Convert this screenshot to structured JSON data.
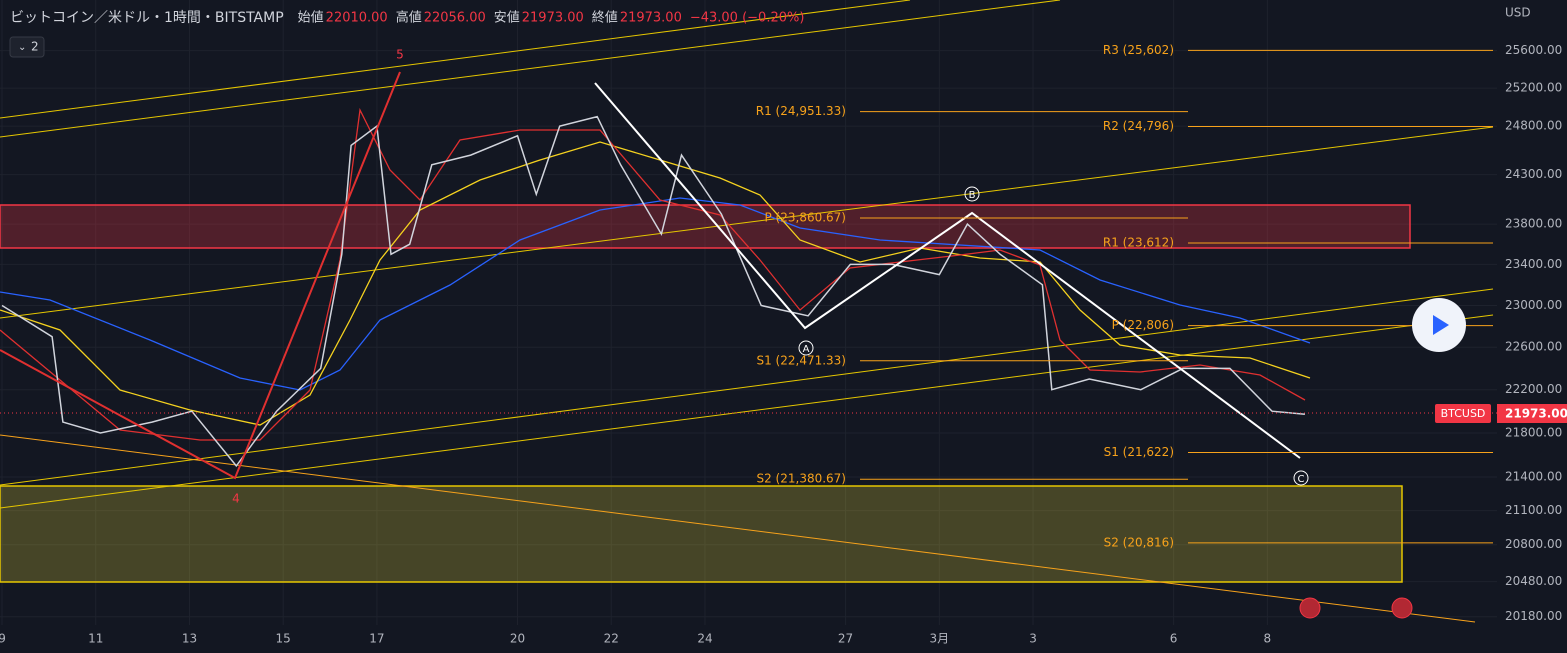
{
  "header": {
    "symbol": "ビットコイン／米ドル・1時間・BITSTAMP",
    "fields": [
      {
        "name": "始値",
        "value": "22010.00"
      },
      {
        "name": "高値",
        "value": "22056.00"
      },
      {
        "name": "安値",
        "value": "21973.00"
      },
      {
        "name": "終値",
        "value": "21973.00"
      }
    ],
    "change": "−43.00 (−0.20%)",
    "badge": "2"
  },
  "chart_data": {
    "type": "line",
    "currency": "USD",
    "log_scale": true,
    "grid": true,
    "series": [
      {
        "name": "BTCUSD",
        "color": "#d1d4dc",
        "x": [
          0,
          1.07,
          1.3,
          2.1,
          3.2,
          4.05,
          5,
          5.86,
          6.8,
          7.25,
          7.45,
          8,
          8.3,
          8.7,
          9.17,
          10,
          11,
          11.4,
          11.9,
          12.7,
          13.2,
          14.07,
          14.5,
          15.35,
          16.2,
          17.2,
          18.1,
          19,
          20,
          20.6,
          21.3,
          22.2,
          22.4,
          23.2,
          24.3,
          25.2,
          26.2,
          27.1,
          27.8
        ],
        "values": [
          23000,
          22700,
          21900,
          21800,
          21900,
          22000,
          21500,
          22000,
          22400,
          23500,
          24600,
          24800,
          23500,
          23600,
          24400,
          24500,
          24700,
          24100,
          24800,
          24900,
          24400,
          23700,
          24500,
          23900,
          23000,
          22900,
          23400,
          23400,
          23300,
          23800,
          23500,
          23200,
          22200,
          22300,
          22200,
          22400,
          22400,
          22000,
          21973
        ]
      }
    ],
    "last_price": {
      "name": "BTCUSD",
      "value": 21973,
      "label": "21973.00"
    },
    "xlim": [
      0,
      31.9
    ],
    "xticks": [
      {
        "value": 0,
        "label": "9"
      },
      {
        "value": 2,
        "label": "11"
      },
      {
        "value": 4,
        "label": "13"
      },
      {
        "value": 6,
        "label": "15"
      },
      {
        "value": 8,
        "label": "17"
      },
      {
        "value": 11,
        "label": "20"
      },
      {
        "value": 13,
        "label": "22"
      },
      {
        "value": 15,
        "label": "24"
      },
      {
        "value": 18,
        "label": "27"
      },
      {
        "value": 20,
        "label": "3月"
      },
      {
        "value": 22,
        "label": "3"
      },
      {
        "value": 25,
        "label": "6"
      },
      {
        "value": 27,
        "label": "8"
      }
    ],
    "ylim": [
      20110,
      26150
    ],
    "yticks": [
      {
        "value": 25600,
        "label": "25600.00"
      },
      {
        "value": 25200,
        "label": "25200.00"
      },
      {
        "value": 24800,
        "label": "24800.00"
      },
      {
        "value": 24300,
        "label": "24300.00"
      },
      {
        "value": 23800,
        "label": "23800.00"
      },
      {
        "value": 23400,
        "label": "23400.00"
      },
      {
        "value": 23000,
        "label": "23000.00"
      },
      {
        "value": 22600,
        "label": "22600.00"
      },
      {
        "value": 22200,
        "label": "22200.00"
      },
      {
        "value": 21800,
        "label": "21800.00"
      },
      {
        "value": 21400,
        "label": "21400.00"
      },
      {
        "value": 21100,
        "label": "21100.00"
      },
      {
        "value": 20800,
        "label": "20800.00"
      },
      {
        "value": 20480,
        "label": "20480.00"
      },
      {
        "value": 20180,
        "label": "20180.00"
      }
    ],
    "pivots_left": [
      {
        "label": "R1 (24,951.33)",
        "value": 24951.33
      },
      {
        "label": "P (23,860.67)",
        "value": 23860.67
      },
      {
        "label": "S1 (22,471.33)",
        "value": 22471.33
      },
      {
        "label": "S2 (21,380.67)",
        "value": 21380.67
      }
    ],
    "pivots_right": [
      {
        "label": "R3 (25,602)",
        "value": 25602
      },
      {
        "label": "R2 (24,796)",
        "value": 24796
      },
      {
        "label": "R1 (23,612)",
        "value": 23612
      },
      {
        "label": "P (22,806)",
        "value": 22806
      },
      {
        "label": "S1 (21,622)",
        "value": 21622
      },
      {
        "label": "S2 (20,816)",
        "value": 20816
      }
    ],
    "wave_labels": [
      "5",
      "4",
      "A",
      "B",
      "C"
    ]
  }
}
